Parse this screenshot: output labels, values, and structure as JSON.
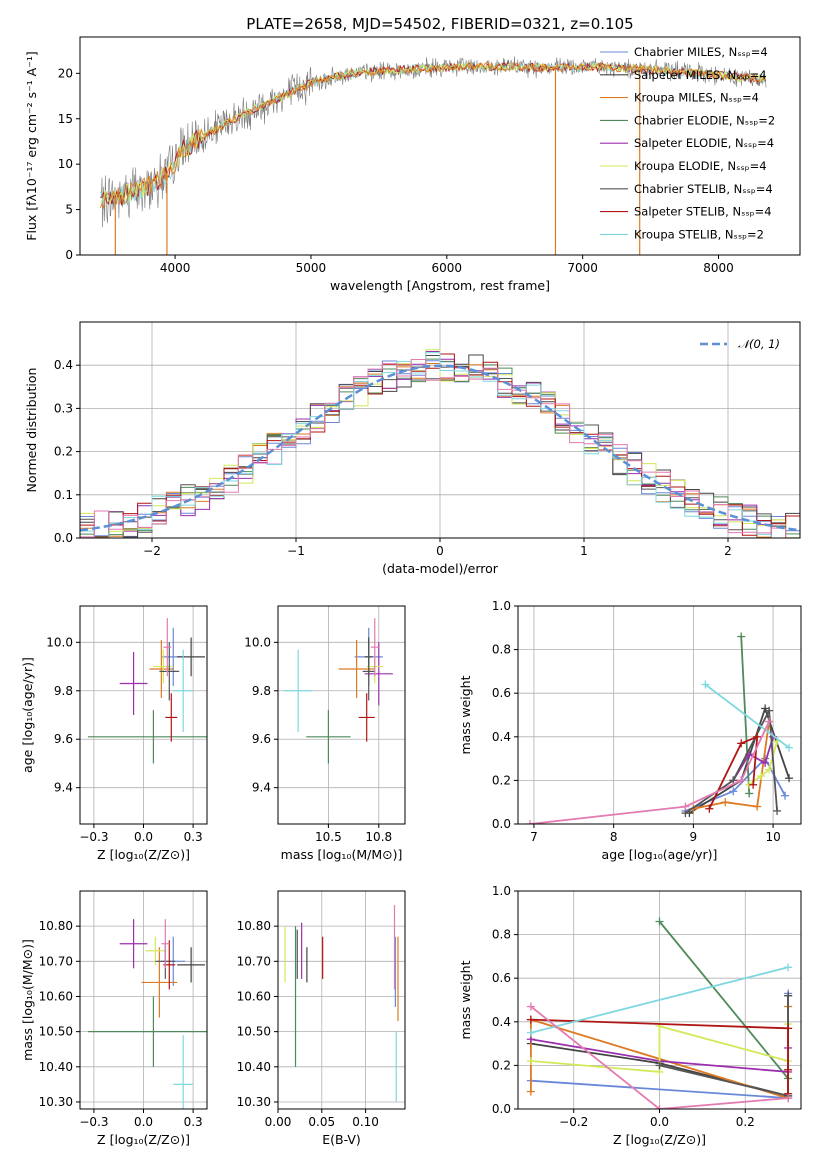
{
  "title": "PLATE=2658, MJD=54502, FIBERID=0321, z=0.105",
  "colors": {
    "Chabrier MILES": "#6a88d9",
    "Salpeter MILES": "#444444",
    "Kroupa MILES": "#dd7a22",
    "Chabrier ELODIE": "#4f8a5a",
    "Salpeter ELODIE": "#9b2fae",
    "Kroupa ELODIE": "#d4e85a",
    "Chabrier STELIB": "#555555",
    "Salpeter STELIB": "#b01515",
    "Kroupa STELIB": "#7fd8e0",
    "pink": "#e37ab0",
    "normal": "#5b8fd6"
  },
  "chart_data": [
    {
      "id": "spectrum",
      "type": "line",
      "xlabel": "wavelength [Angstrom, rest frame]",
      "ylabel": "Flux [fλ10⁻¹⁷ erg cm⁻² s⁻¹ A⁻¹]",
      "xlim": [
        3300,
        8600
      ],
      "ylim": [
        0,
        24
      ],
      "xticks": [
        4000,
        5000,
        6000,
        7000,
        8000
      ],
      "yticks": [
        0,
        5,
        10,
        15,
        20
      ],
      "grid": false,
      "legend_position": "top-right",
      "legend": [
        {
          "name": "Chabrier MILES, Nₛₛₚ=4",
          "color_key": "Chabrier MILES"
        },
        {
          "name": "Salpeter MILES, Nₛₛₚ=4",
          "color_key": "Salpeter MILES"
        },
        {
          "name": "Kroupa MILES, Nₛₛₚ=4",
          "color_key": "Kroupa MILES"
        },
        {
          "name": "Chabrier ELODIE, Nₛₛₚ=2",
          "color_key": "Chabrier ELODIE"
        },
        {
          "name": "Salpeter ELODIE, Nₛₛₚ=4",
          "color_key": "Salpeter ELODIE"
        },
        {
          "name": "Kroupa ELODIE, Nₛₛₚ=4",
          "color_key": "Kroupa ELODIE"
        },
        {
          "name": "Chabrier STELIB, Nₛₛₚ=4",
          "color_key": "Chabrier STELIB"
        },
        {
          "name": "Salpeter STELIB, Nₛₛₚ=4",
          "color_key": "Salpeter STELIB"
        },
        {
          "name": "Kroupa STELIB, Nₛₛₚ=2",
          "color_key": "Kroupa STELIB"
        }
      ],
      "continuum": {
        "x": [
          3450,
          3600,
          3800,
          3950,
          4050,
          4200,
          4500,
          4800,
          5000,
          5300,
          5600,
          5900,
          6200,
          6500,
          6800,
          7100,
          7400,
          7700,
          8000,
          8350
        ],
        "y": [
          6.0,
          6.5,
          7.5,
          9.0,
          11.5,
          13.0,
          15.5,
          17.5,
          19.0,
          20.0,
          20.3,
          20.6,
          20.8,
          20.7,
          20.6,
          20.7,
          20.5,
          20.2,
          19.8,
          19.3
        ]
      },
      "spikes": [
        {
          "x": 3560,
          "y": 0,
          "color_key": "Kroupa MILES"
        },
        {
          "x": 3940,
          "y": 0,
          "color_key": "Kroupa MILES"
        },
        {
          "x": 6800,
          "y": 0,
          "color_key": "Kroupa MILES"
        },
        {
          "x": 7420,
          "y": 0,
          "color_key": "Kroupa MILES"
        }
      ]
    },
    {
      "id": "residuals",
      "type": "histogram",
      "xlabel": "(data-model)/error",
      "ylabel": "Normed distribution",
      "xlim": [
        -2.5,
        2.5
      ],
      "ylim": [
        0,
        0.5
      ],
      "xticks": [
        -2,
        -1,
        0,
        1,
        2
      ],
      "yticks": [
        0.0,
        0.1,
        0.2,
        0.3,
        0.4
      ],
      "grid": true,
      "legend_position": "top-right",
      "legend": [
        {
          "name": "𝒩(0, 1)",
          "style": "dashed",
          "color_key": "normal"
        }
      ],
      "bin_width": 0.1
    },
    {
      "id": "age_vs_Z",
      "type": "errorbar",
      "xlabel": "Z [log₁₀(Z/Z⊙)]",
      "ylabel": "age  [log₁₀(age/yr)]",
      "xlim": [
        -0.32,
        0.32
      ],
      "ylim": [
        9.25,
        10.15
      ],
      "xticks": [
        -0.25,
        0.0,
        0.25
      ],
      "yticks": [
        9.4,
        9.6,
        9.8,
        10.0
      ],
      "grid": true,
      "points": [
        {
          "key": "Chabrier MILES",
          "x": 0.15,
          "xe": 0.06,
          "y": 9.94,
          "ye": 0.12
        },
        {
          "key": "Salpeter MILES",
          "x": 0.24,
          "xe": 0.07,
          "y": 9.94,
          "ye": 0.08
        },
        {
          "key": "Kroupa MILES",
          "x": 0.09,
          "xe": 0.06,
          "y": 9.89,
          "ye": 0.12
        },
        {
          "key": "Chabrier ELODIE",
          "x": 0.05,
          "xe": 0.33,
          "y": 9.61,
          "ye": 0.11
        },
        {
          "key": "Salpeter ELODIE",
          "x": -0.05,
          "xe": 0.07,
          "y": 9.83,
          "ye": 0.13
        },
        {
          "key": "Kroupa ELODIE",
          "x": 0.1,
          "xe": 0.05,
          "y": 9.9,
          "ye": 0.07
        },
        {
          "key": "Chabrier STELIB",
          "x": 0.13,
          "xe": 0.05,
          "y": 9.88,
          "ye": 0.12
        },
        {
          "key": "Salpeter STELIB",
          "x": 0.14,
          "xe": 0.03,
          "y": 9.69,
          "ye": 0.1
        },
        {
          "key": "Kroupa STELIB",
          "x": 0.2,
          "xe": 0.05,
          "y": 9.8,
          "ye": 0.17
        },
        {
          "key": "pink",
          "x": 0.12,
          "xe": 0.02,
          "y": 9.98,
          "ye": 0.12
        }
      ]
    },
    {
      "id": "age_vs_mass",
      "type": "errorbar",
      "xlabel": "mass [log₁₀(M/M⊙)]",
      "xlim": [
        10.25,
        10.88
      ],
      "ylim": [
        9.25,
        10.15
      ],
      "xticks": [
        10.5,
        10.75
      ],
      "yticks": [
        9.4,
        9.6,
        9.8,
        10.0
      ],
      "grid": true,
      "points": [
        {
          "key": "Chabrier MILES",
          "x": 10.7,
          "xe": 0.07,
          "y": 9.94,
          "ye": 0.12
        },
        {
          "key": "Salpeter MILES",
          "x": 10.7,
          "xe": 0.02,
          "y": 9.94,
          "ye": 0.08
        },
        {
          "key": "Kroupa MILES",
          "x": 10.64,
          "xe": 0.09,
          "y": 9.89,
          "ye": 0.12
        },
        {
          "key": "Chabrier ELODIE",
          "x": 10.5,
          "xe": 0.11,
          "y": 9.61,
          "ye": 0.11
        },
        {
          "key": "Salpeter ELODIE",
          "x": 10.75,
          "xe": 0.07,
          "y": 9.87,
          "ye": 0.13
        },
        {
          "key": "Kroupa ELODIE",
          "x": 10.73,
          "xe": 0.04,
          "y": 9.9,
          "ye": 0.07
        },
        {
          "key": "Chabrier STELIB",
          "x": 10.7,
          "xe": 0.03,
          "y": 9.88,
          "ye": 0.12
        },
        {
          "key": "Salpeter STELIB",
          "x": 10.69,
          "xe": 0.04,
          "y": 9.69,
          "ye": 0.1
        },
        {
          "key": "Kroupa STELIB",
          "x": 10.35,
          "xe": 0.07,
          "y": 9.8,
          "ye": 0.17
        },
        {
          "key": "pink",
          "x": 10.73,
          "xe": 0.02,
          "y": 9.98,
          "ye": 0.12
        }
      ]
    },
    {
      "id": "weight_vs_age",
      "type": "line",
      "xlabel": "age  [log₁₀(age/yr)]",
      "ylabel": "mass weight",
      "xlim": [
        6.8,
        10.35
      ],
      "ylim": [
        0,
        1.0
      ],
      "xticks": [
        7,
        8,
        9,
        10
      ],
      "yticks": [
        0.0,
        0.2,
        0.4,
        0.6,
        0.8,
        1.0
      ],
      "grid": true,
      "series": [
        {
          "key": "Chabrier MILES",
          "x": [
            8.9,
            9.5,
            9.9,
            10.15
          ],
          "y": [
            0.06,
            0.15,
            0.3,
            0.13
          ]
        },
        {
          "key": "Salpeter MILES",
          "x": [
            8.95,
            9.6,
            9.9,
            10.2
          ],
          "y": [
            0.05,
            0.2,
            0.53,
            0.21
          ]
        },
        {
          "key": "Kroupa MILES",
          "x": [
            9.0,
            9.4,
            9.8,
            9.95
          ],
          "y": [
            0.07,
            0.1,
            0.08,
            0.47
          ]
        },
        {
          "key": "Chabrier ELODIE",
          "x": [
            9.6,
            9.7
          ],
          "y": [
            0.86,
            0.14
          ]
        },
        {
          "key": "Salpeter ELODIE",
          "x": [
            9.5,
            9.7,
            9.9,
            10.0
          ],
          "y": [
            0.2,
            0.32,
            0.28,
            0.4
          ]
        },
        {
          "key": "Kroupa ELODIE",
          "x": [
            9.7,
            9.85,
            9.95,
            10.05
          ],
          "y": [
            0.18,
            0.22,
            0.25,
            0.38
          ]
        },
        {
          "key": "Chabrier STELIB",
          "x": [
            8.9,
            9.5,
            9.95,
            10.05
          ],
          "y": [
            0.05,
            0.2,
            0.52,
            0.06
          ]
        },
        {
          "key": "Salpeter STELIB",
          "x": [
            9.2,
            9.6,
            9.8,
            9.75
          ],
          "y": [
            0.07,
            0.37,
            0.4,
            0.18
          ]
        },
        {
          "key": "Kroupa STELIB",
          "x": [
            9.15,
            10.2
          ],
          "y": [
            0.64,
            0.35
          ]
        },
        {
          "key": "pink",
          "x": [
            6.95,
            8.9,
            9.6,
            9.95
          ],
          "y": [
            0.0,
            0.08,
            0.2,
            0.47
          ]
        }
      ]
    },
    {
      "id": "mass_vs_Z",
      "type": "errorbar",
      "xlabel": "Z [log₁₀(Z/Z⊙)]",
      "ylabel": "mass [log₁₀(M/M⊙)]",
      "xlim": [
        -0.32,
        0.32
      ],
      "ylim": [
        10.28,
        10.9
      ],
      "xticks": [
        -0.25,
        0.0,
        0.25
      ],
      "yticks": [
        10.3,
        10.4,
        10.5,
        10.6,
        10.7,
        10.8
      ],
      "grid": true,
      "points": [
        {
          "key": "Chabrier MILES",
          "x": 0.15,
          "xe": 0.06,
          "y": 10.7,
          "ye": 0.07
        },
        {
          "key": "Salpeter MILES",
          "x": 0.24,
          "xe": 0.07,
          "y": 10.69,
          "ye": 0.05
        },
        {
          "key": "Kroupa MILES",
          "x": 0.08,
          "xe": 0.09,
          "y": 10.64,
          "ye": 0.1
        },
        {
          "key": "Chabrier ELODIE",
          "x": 0.05,
          "xe": 0.33,
          "y": 10.5,
          "ye": 0.1
        },
        {
          "key": "Salpeter ELODIE",
          "x": -0.05,
          "xe": 0.07,
          "y": 10.75,
          "ye": 0.07
        },
        {
          "key": "Kroupa ELODIE",
          "x": 0.06,
          "xe": 0.05,
          "y": 10.73,
          "ye": 0.04
        },
        {
          "key": "Chabrier STELIB",
          "x": 0.11,
          "xe": 0.05,
          "y": 10.7,
          "ye": 0.05
        },
        {
          "key": "Salpeter STELIB",
          "x": 0.13,
          "xe": 0.03,
          "y": 10.69,
          "ye": 0.07
        },
        {
          "key": "Kroupa STELIB",
          "x": 0.2,
          "xe": 0.05,
          "y": 10.35,
          "ye": 0.14
        },
        {
          "key": "pink",
          "x": 0.11,
          "xe": 0.02,
          "y": 10.75,
          "ye": 0.07
        }
      ]
    },
    {
      "id": "mass_vs_ebv",
      "type": "errorbar",
      "xlabel": "E(B-V)",
      "xlim": [
        0.0,
        0.145
      ],
      "ylim": [
        10.28,
        10.9
      ],
      "xticks": [
        0.0,
        0.05,
        0.1
      ],
      "yticks": [
        10.3,
        10.4,
        10.5,
        10.6,
        10.7,
        10.8
      ],
      "grid": true,
      "points": [
        {
          "key": "Chabrier MILES",
          "x": 0.134,
          "y": 10.67,
          "ye": 0.1
        },
        {
          "key": "Salpeter MILES",
          "x": 0.033,
          "y": 10.69,
          "ye": 0.05
        },
        {
          "key": "Kroupa MILES",
          "x": 0.137,
          "y": 10.65,
          "ye": 0.12
        },
        {
          "key": "Chabrier ELODIE",
          "x": 0.02,
          "y": 10.6,
          "ye": 0.2
        },
        {
          "key": "Salpeter ELODIE",
          "x": 0.027,
          "y": 10.73,
          "ye": 0.08
        },
        {
          "key": "Kroupa ELODIE",
          "x": 0.008,
          "y": 10.72,
          "ye": 0.08
        },
        {
          "key": "Chabrier STELIB",
          "x": 0.022,
          "y": 10.72,
          "ye": 0.07
        },
        {
          "key": "Salpeter STELIB",
          "x": 0.051,
          "y": 10.71,
          "ye": 0.06
        },
        {
          "key": "Kroupa STELIB",
          "x": 0.135,
          "y": 10.4,
          "ye": 0.1
        },
        {
          "key": "pink",
          "x": 0.133,
          "y": 10.74,
          "ye": 0.12
        }
      ]
    },
    {
      "id": "weight_vs_Z",
      "type": "line",
      "xlabel": "Z [log₁₀(Z/Z⊙)]",
      "ylabel": "mass weight",
      "xlim": [
        -0.33,
        0.33
      ],
      "ylim": [
        0,
        1.0
      ],
      "xticks": [
        -0.2,
        0.0,
        0.2
      ],
      "yticks": [
        0.0,
        0.2,
        0.4,
        0.6,
        0.8,
        1.0
      ],
      "grid": true,
      "series": [
        {
          "key": "Chabrier MILES",
          "x": [
            -0.3,
            0.3,
            0.3
          ],
          "y": [
            0.13,
            0.05,
            0.53
          ]
        },
        {
          "key": "Salpeter MILES",
          "x": [
            -0.3,
            0.0,
            0.3,
            0.3
          ],
          "y": [
            0.3,
            0.21,
            0.06,
            0.52
          ]
        },
        {
          "key": "Kroupa MILES",
          "x": [
            -0.3,
            -0.3,
            0.3,
            0.3
          ],
          "y": [
            0.08,
            0.41,
            0.05,
            0.47
          ]
        },
        {
          "key": "Chabrier ELODIE",
          "x": [
            0.0,
            0.3
          ],
          "y": [
            0.86,
            0.14
          ]
        },
        {
          "key": "Salpeter ELODIE",
          "x": [
            -0.3,
            0.0,
            0.3,
            0.3
          ],
          "y": [
            0.32,
            0.22,
            0.17,
            0.28
          ]
        },
        {
          "key": "Kroupa ELODIE",
          "x": [
            -0.3,
            0.0,
            0.0,
            0.3,
            0.3
          ],
          "y": [
            0.22,
            0.17,
            0.38,
            0.22,
            0.39
          ]
        },
        {
          "key": "Chabrier STELIB",
          "x": [
            0.0,
            0.3,
            0.3
          ],
          "y": [
            0.2,
            0.06,
            0.52
          ]
        },
        {
          "key": "Salpeter STELIB",
          "x": [
            -0.3,
            0.3,
            0.3,
            0.3
          ],
          "y": [
            0.41,
            0.37,
            0.07,
            0.18
          ]
        },
        {
          "key": "Kroupa STELIB",
          "x": [
            -0.3,
            0.3
          ],
          "y": [
            0.35,
            0.65
          ]
        },
        {
          "key": "pink",
          "x": [
            -0.3,
            0.0,
            0.3
          ],
          "y": [
            0.47,
            0.0,
            0.05
          ]
        }
      ]
    }
  ]
}
